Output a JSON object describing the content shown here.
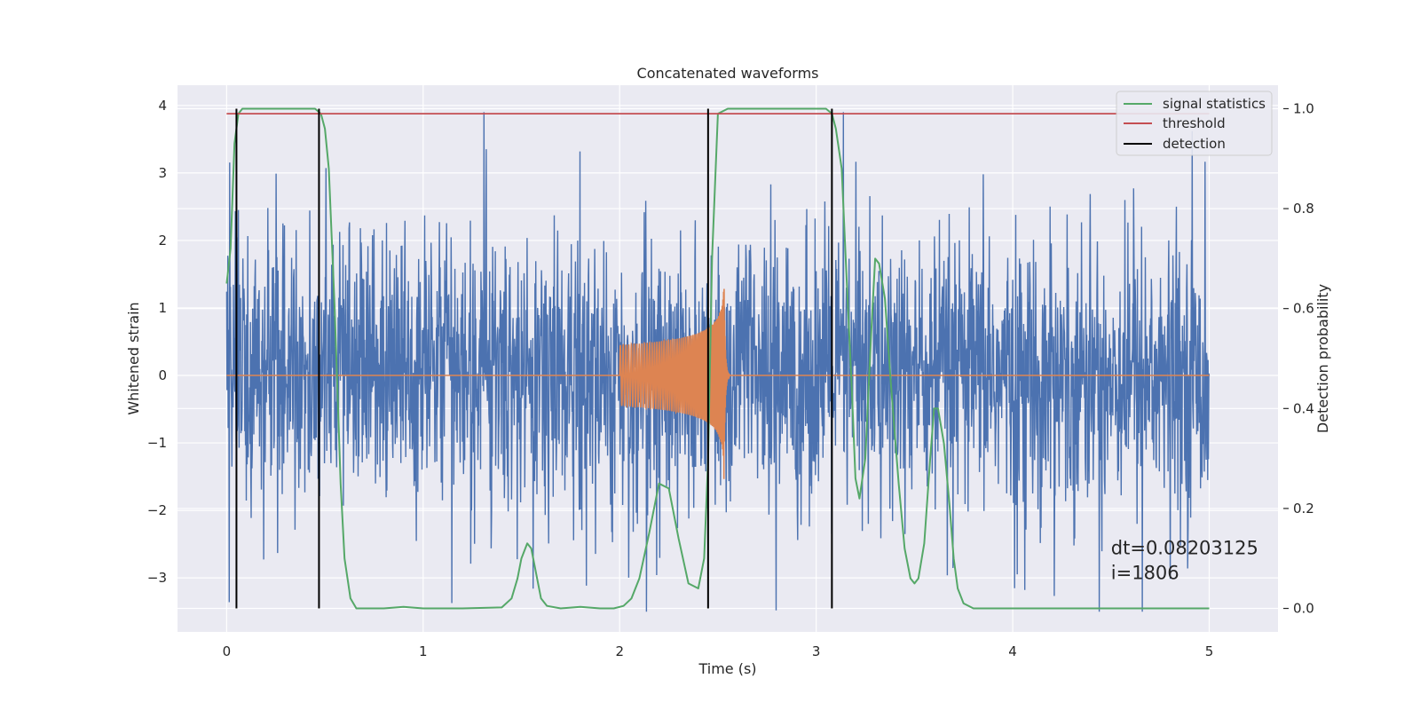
{
  "chart_data": {
    "type": "line",
    "title": "Concatenated waveforms",
    "xlabel": "Time (s)",
    "ylabel": "Whitened strain",
    "ylabel_right": "Detection probability",
    "xlim": [
      -0.25,
      5.35
    ],
    "ylim": [
      -3.8,
      4.3
    ],
    "ylim_right": [
      -0.047,
      1.047
    ],
    "x_ticks": [
      0,
      1,
      2,
      3,
      4,
      5
    ],
    "y_ticks": [
      -3,
      -2,
      -1,
      0,
      1,
      2,
      3,
      4
    ],
    "y_ticks_right": [
      0.0,
      0.2,
      0.4,
      0.6,
      0.8,
      1.0
    ],
    "x_tick_labels": [
      "0",
      "1",
      "2",
      "3",
      "4",
      "5"
    ],
    "y_tick_labels": [
      "−3",
      "−2",
      "−1",
      "0",
      "1",
      "2",
      "3",
      "4"
    ],
    "y_tick_labels_right": [
      "0.0",
      "0.2",
      "0.4",
      "0.6",
      "0.8",
      "1.0"
    ],
    "grid": true,
    "legend_position": "top-right",
    "colors": {
      "background": "#eaeaf2",
      "grid": "#ffffff",
      "strain": "#4c72b0",
      "waveform": "#dd8452",
      "statistic": "#55a868",
      "threshold": "#c44e52",
      "detection": "#000000"
    },
    "series": [
      {
        "name": "",
        "color": "#4c72b0",
        "kind": "noise",
        "x_range": [
          0,
          5
        ],
        "amplitude_typical": 1.3,
        "amplitude_peak": 3.9
      },
      {
        "name": "",
        "color": "#dd8452",
        "kind": "chirp",
        "x_range": [
          0,
          5
        ],
        "chirp_start": 2.0,
        "chirp_merger": 2.53,
        "amplitude_start": 0.45,
        "amplitude_peak": 1.7
      },
      {
        "name": "signal statistics",
        "color": "#55a868",
        "axis": "right",
        "x": [
          0,
          0.02,
          0.04,
          0.06,
          0.08,
          0.1,
          0.2,
          0.3,
          0.4,
          0.45,
          0.48,
          0.5,
          0.52,
          0.55,
          0.58,
          0.6,
          0.63,
          0.66,
          0.7,
          0.8,
          0.9,
          1.0,
          1.2,
          1.4,
          1.45,
          1.48,
          1.5,
          1.53,
          1.55,
          1.58,
          1.6,
          1.63,
          1.7,
          1.8,
          1.9,
          1.97,
          2.02,
          2.06,
          2.1,
          2.15,
          2.2,
          2.25,
          2.3,
          2.35,
          2.4,
          2.43,
          2.45,
          2.47,
          2.5,
          2.55,
          2.6,
          2.8,
          3.0,
          3.05,
          3.08,
          3.1,
          3.13,
          3.15,
          3.18,
          3.2,
          3.22,
          3.25,
          3.28,
          3.3,
          3.32,
          3.35,
          3.38,
          3.42,
          3.45,
          3.48,
          3.5,
          3.52,
          3.55,
          3.58,
          3.6,
          3.62,
          3.65,
          3.68,
          3.7,
          3.72,
          3.75,
          3.8,
          4.0,
          4.5,
          5.0
        ],
        "y": [
          0.65,
          0.72,
          0.93,
          0.99,
          1.0,
          1.0,
          1.0,
          1.0,
          1.0,
          1.0,
          0.99,
          0.96,
          0.88,
          0.6,
          0.25,
          0.1,
          0.02,
          0.0,
          0.0,
          0.0,
          0.003,
          0.0,
          0.0,
          0.002,
          0.02,
          0.06,
          0.1,
          0.13,
          0.12,
          0.06,
          0.02,
          0.005,
          0.0,
          0.003,
          0.0,
          0.0,
          0.005,
          0.02,
          0.06,
          0.15,
          0.25,
          0.24,
          0.14,
          0.05,
          0.04,
          0.1,
          0.3,
          0.7,
          0.99,
          1.0,
          1.0,
          1.0,
          1.0,
          1.0,
          0.99,
          0.96,
          0.88,
          0.7,
          0.45,
          0.26,
          0.22,
          0.3,
          0.55,
          0.7,
          0.69,
          0.62,
          0.45,
          0.25,
          0.12,
          0.06,
          0.05,
          0.06,
          0.13,
          0.3,
          0.4,
          0.4,
          0.33,
          0.2,
          0.1,
          0.04,
          0.01,
          0.0,
          0.0,
          0.0,
          0.0
        ]
      },
      {
        "name": "threshold",
        "color": "#c44e52",
        "axis": "right",
        "x": [
          0,
          5
        ],
        "y": [
          0.99,
          0.99
        ]
      },
      {
        "name": "detection",
        "color": "#000000",
        "axis": "right",
        "kind": "vlines",
        "x": [
          0.05,
          0.47,
          2.45,
          3.08
        ],
        "y_range": [
          0.0,
          1.0
        ]
      }
    ],
    "annotations": [
      {
        "text": "dt=0.08203125",
        "x": 4.5,
        "y": -2.65
      },
      {
        "text": " i=1806",
        "x": 4.5,
        "y": -3.02
      }
    ]
  }
}
